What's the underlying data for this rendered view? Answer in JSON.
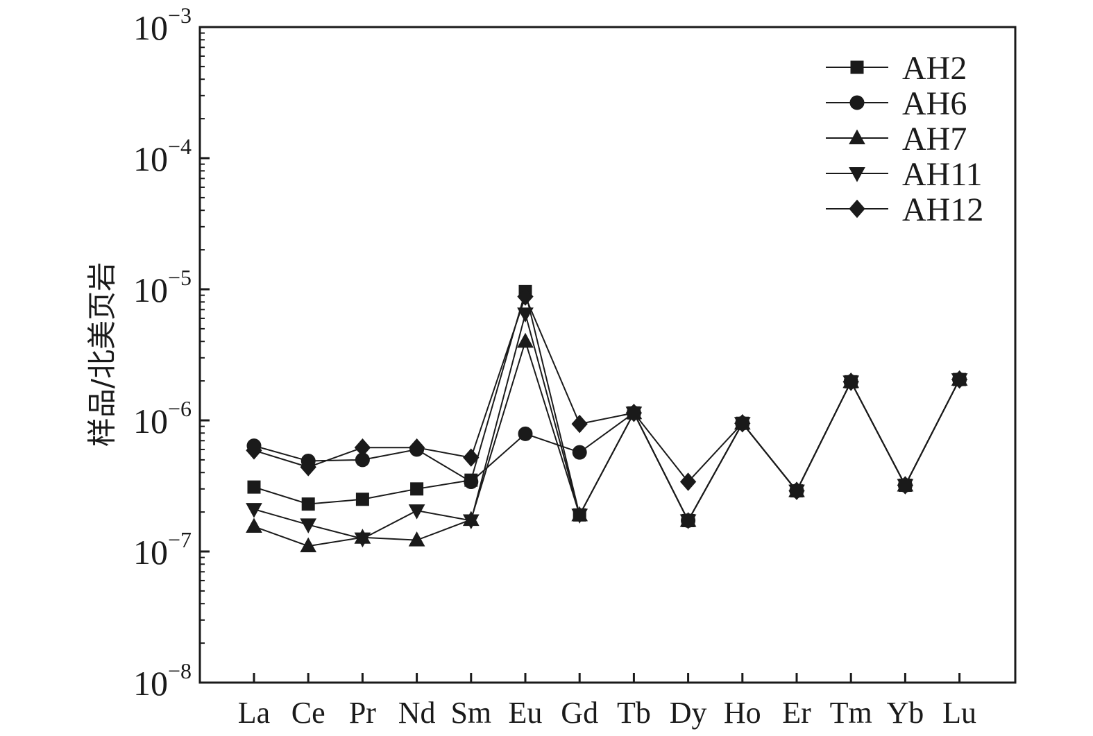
{
  "chart_data": {
    "type": "line",
    "title": "",
    "xlabel": "",
    "ylabel": "样品/北美页岩",
    "y_scale": "log",
    "ylim": [
      1e-08,
      0.001
    ],
    "y_ticks": [
      {
        "value": 0.001,
        "base": "10",
        "exp": "−3"
      },
      {
        "value": 0.0001,
        "base": "10",
        "exp": "−4"
      },
      {
        "value": 1e-05,
        "base": "10",
        "exp": "−5"
      },
      {
        "value": 1e-06,
        "base": "10",
        "exp": "−6"
      },
      {
        "value": 1e-07,
        "base": "10",
        "exp": "−7"
      },
      {
        "value": 1e-08,
        "base": "10",
        "exp": "−8"
      }
    ],
    "categories": [
      "La",
      "Ce",
      "Pr",
      "Nd",
      "Sm",
      "Eu",
      "Gd",
      "Tb",
      "Dy",
      "Ho",
      "Er",
      "Tm",
      "Yb",
      "Lu"
    ],
    "grid": false,
    "legend_position": "top-right",
    "series": [
      {
        "name": "AH2",
        "marker": "square",
        "color": "#1a1a1a",
        "values": [
          3.1e-07,
          2.3e-07,
          2.5e-07,
          3e-07,
          3.5e-07,
          9.6e-06,
          1.9e-07,
          1.14e-06,
          1.72e-07,
          9.5e-07,
          2.9e-07,
          1.97e-06,
          3.2e-07,
          2.05e-06
        ]
      },
      {
        "name": "AH6",
        "marker": "circle",
        "color": "#1a1a1a",
        "values": [
          6.4e-07,
          4.9e-07,
          5e-07,
          6e-07,
          3.4e-07,
          7.9e-07,
          5.7e-07,
          1.14e-06,
          1.72e-07,
          9.5e-07,
          2.9e-07,
          1.97e-06,
          3.2e-07,
          2.05e-06
        ]
      },
      {
        "name": "AH7",
        "marker": "triangle-up",
        "color": "#1a1a1a",
        "values": [
          1.55e-07,
          1.1e-07,
          1.28e-07,
          1.22e-07,
          1.75e-07,
          4e-06,
          1.9e-07,
          1.14e-06,
          1.72e-07,
          9.5e-07,
          2.9e-07,
          1.97e-06,
          3.2e-07,
          2.05e-06
        ]
      },
      {
        "name": "AH11",
        "marker": "triangle-down",
        "color": "#1a1a1a",
        "values": [
          2.1e-07,
          1.6e-07,
          1.25e-07,
          2.05e-07,
          1.72e-07,
          6.5e-06,
          1.9e-07,
          1.14e-06,
          1.72e-07,
          9.5e-07,
          2.9e-07,
          1.97e-06,
          3.2e-07,
          2.05e-06
        ]
      },
      {
        "name": "AH12",
        "marker": "diamond",
        "color": "#1a1a1a",
        "values": [
          5.9e-07,
          4.4e-07,
          6.2e-07,
          6.2e-07,
          5.2e-07,
          8.8e-06,
          9.4e-07,
          1.14e-06,
          3.4e-07,
          9.5e-07,
          2.9e-07,
          1.97e-06,
          3.2e-07,
          2.05e-06
        ]
      }
    ]
  }
}
